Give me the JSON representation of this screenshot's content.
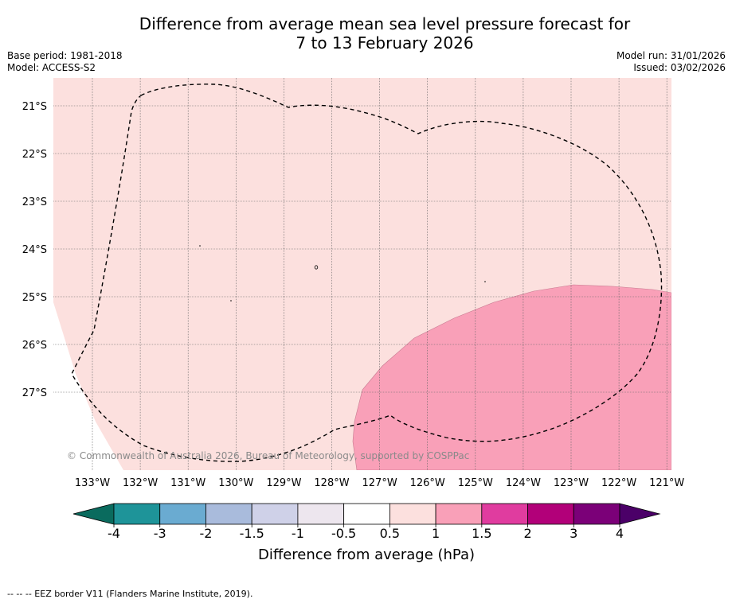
{
  "title_line1": "Difference from average mean sea level pressure forecast for",
  "title_line2": "7 to 13 February 2026",
  "base_period": "Base period: 1981-2018",
  "model": "Model: ACCESS-S2",
  "model_run": "Model run: 31/01/2026",
  "issued": "Issued: 03/02/2026",
  "copyright": "© Commonwealth of Australia 2026, Bureau of Meteorology, supported by COSPPac",
  "map": {
    "lat_labels": [
      "21°S",
      "22°S",
      "23°S",
      "24°S",
      "25°S",
      "26°S",
      "27°S"
    ],
    "lon_labels": [
      "133°W",
      "132°W",
      "131°W",
      "130°W",
      "129°W",
      "128°W",
      "127°W",
      "126°W",
      "125°W",
      "124°W",
      "123°W",
      "122°W",
      "121°W"
    ],
    "colors": {
      "anomaly_0_5_to_1": "#fce0de",
      "anomaly_1_to_1_5": "#f9a0b8",
      "eez_border": "#000000",
      "gridline": "#555555"
    }
  },
  "colorbar": {
    "label": "Difference from average (hPa)",
    "ticks": [
      "-4",
      "-3",
      "-2",
      "-1.5",
      "-1",
      "-0.5",
      "0.5",
      "1",
      "1.5",
      "2",
      "3",
      "4"
    ],
    "colors": [
      "#197f7f",
      "#1e9499",
      "#6aabd1",
      "#a9bbdc",
      "#cfd1e8",
      "#ede6ee",
      "#ffffff",
      "#fce0de",
      "#f9a0b8",
      "#e03c9f",
      "#b20079",
      "#7b0078"
    ],
    "low_extend_color": "#0a6b5e",
    "high_extend_color": "#4b0068"
  },
  "footnote": "-- -- -- EEZ border V11 (Flanders Marine Institute, 2019)."
}
